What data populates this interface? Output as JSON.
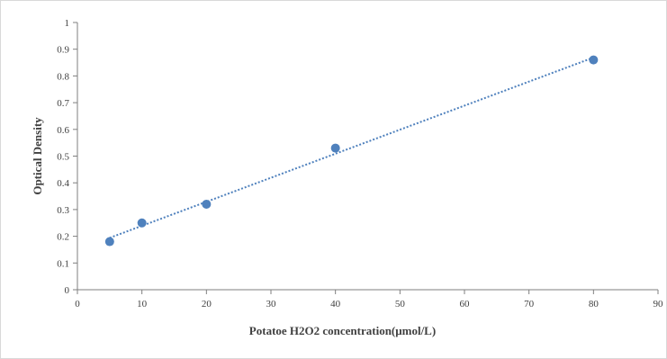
{
  "chart_data": {
    "type": "scatter",
    "xlabel": "Potatoe H2O2 concentration(μmol/L)",
    "ylabel": "Optical Density",
    "xlim": [
      0,
      90
    ],
    "ylim": [
      0,
      1
    ],
    "x_ticks": [
      "0",
      "10",
      "20",
      "30",
      "40",
      "50",
      "60",
      "70",
      "80",
      "90"
    ],
    "y_ticks": [
      "0",
      "0.1",
      "0.2",
      "0.3",
      "0.4",
      "0.5",
      "0.6",
      "0.7",
      "0.8",
      "0.9",
      "1"
    ],
    "series": [
      {
        "points": [
          {
            "x": 5,
            "y": 0.18
          },
          {
            "x": 10,
            "y": 0.25
          },
          {
            "x": 20,
            "y": 0.32
          },
          {
            "x": 40,
            "y": 0.53
          },
          {
            "x": 80,
            "y": 0.86
          }
        ],
        "trendline": {
          "type": "linear",
          "style": "dotted"
        }
      }
    ],
    "grid": false,
    "colors": {
      "marker": "#4f81bd",
      "trendline": "#4f81bd",
      "axis": "#7f7f7f",
      "text": "#404040"
    }
  }
}
